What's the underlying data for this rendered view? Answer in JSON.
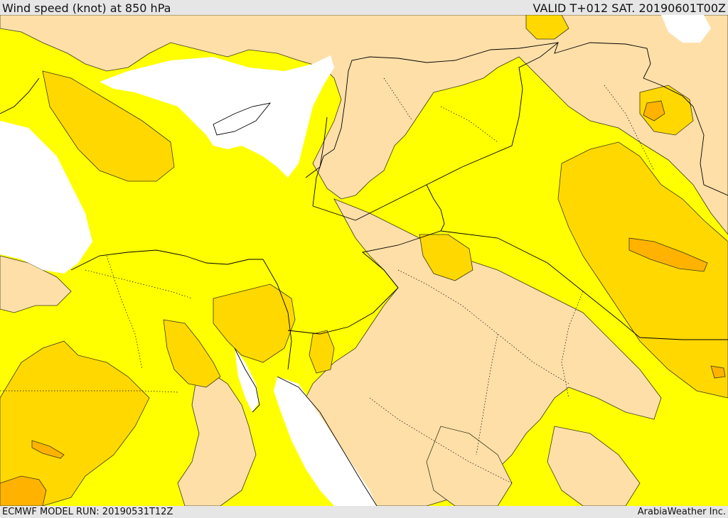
{
  "header": {
    "title": "Wind speed (knot) at 850 hPa",
    "valid": "VALID T+012 SAT. 20190601T00Z"
  },
  "footer": {
    "model_run": "ECMWF MODEL RUN: 20190531T12Z",
    "credit": "ArabiaWeather Inc."
  },
  "colors": {
    "sea_no_data": "#ffffff",
    "band_low": "#ffdfa8",
    "band_mid": "#ffff00",
    "band_high": "#ffd800",
    "band_higher": "#ffb300",
    "contour": "#3a3a1a",
    "border": "#000000"
  }
}
